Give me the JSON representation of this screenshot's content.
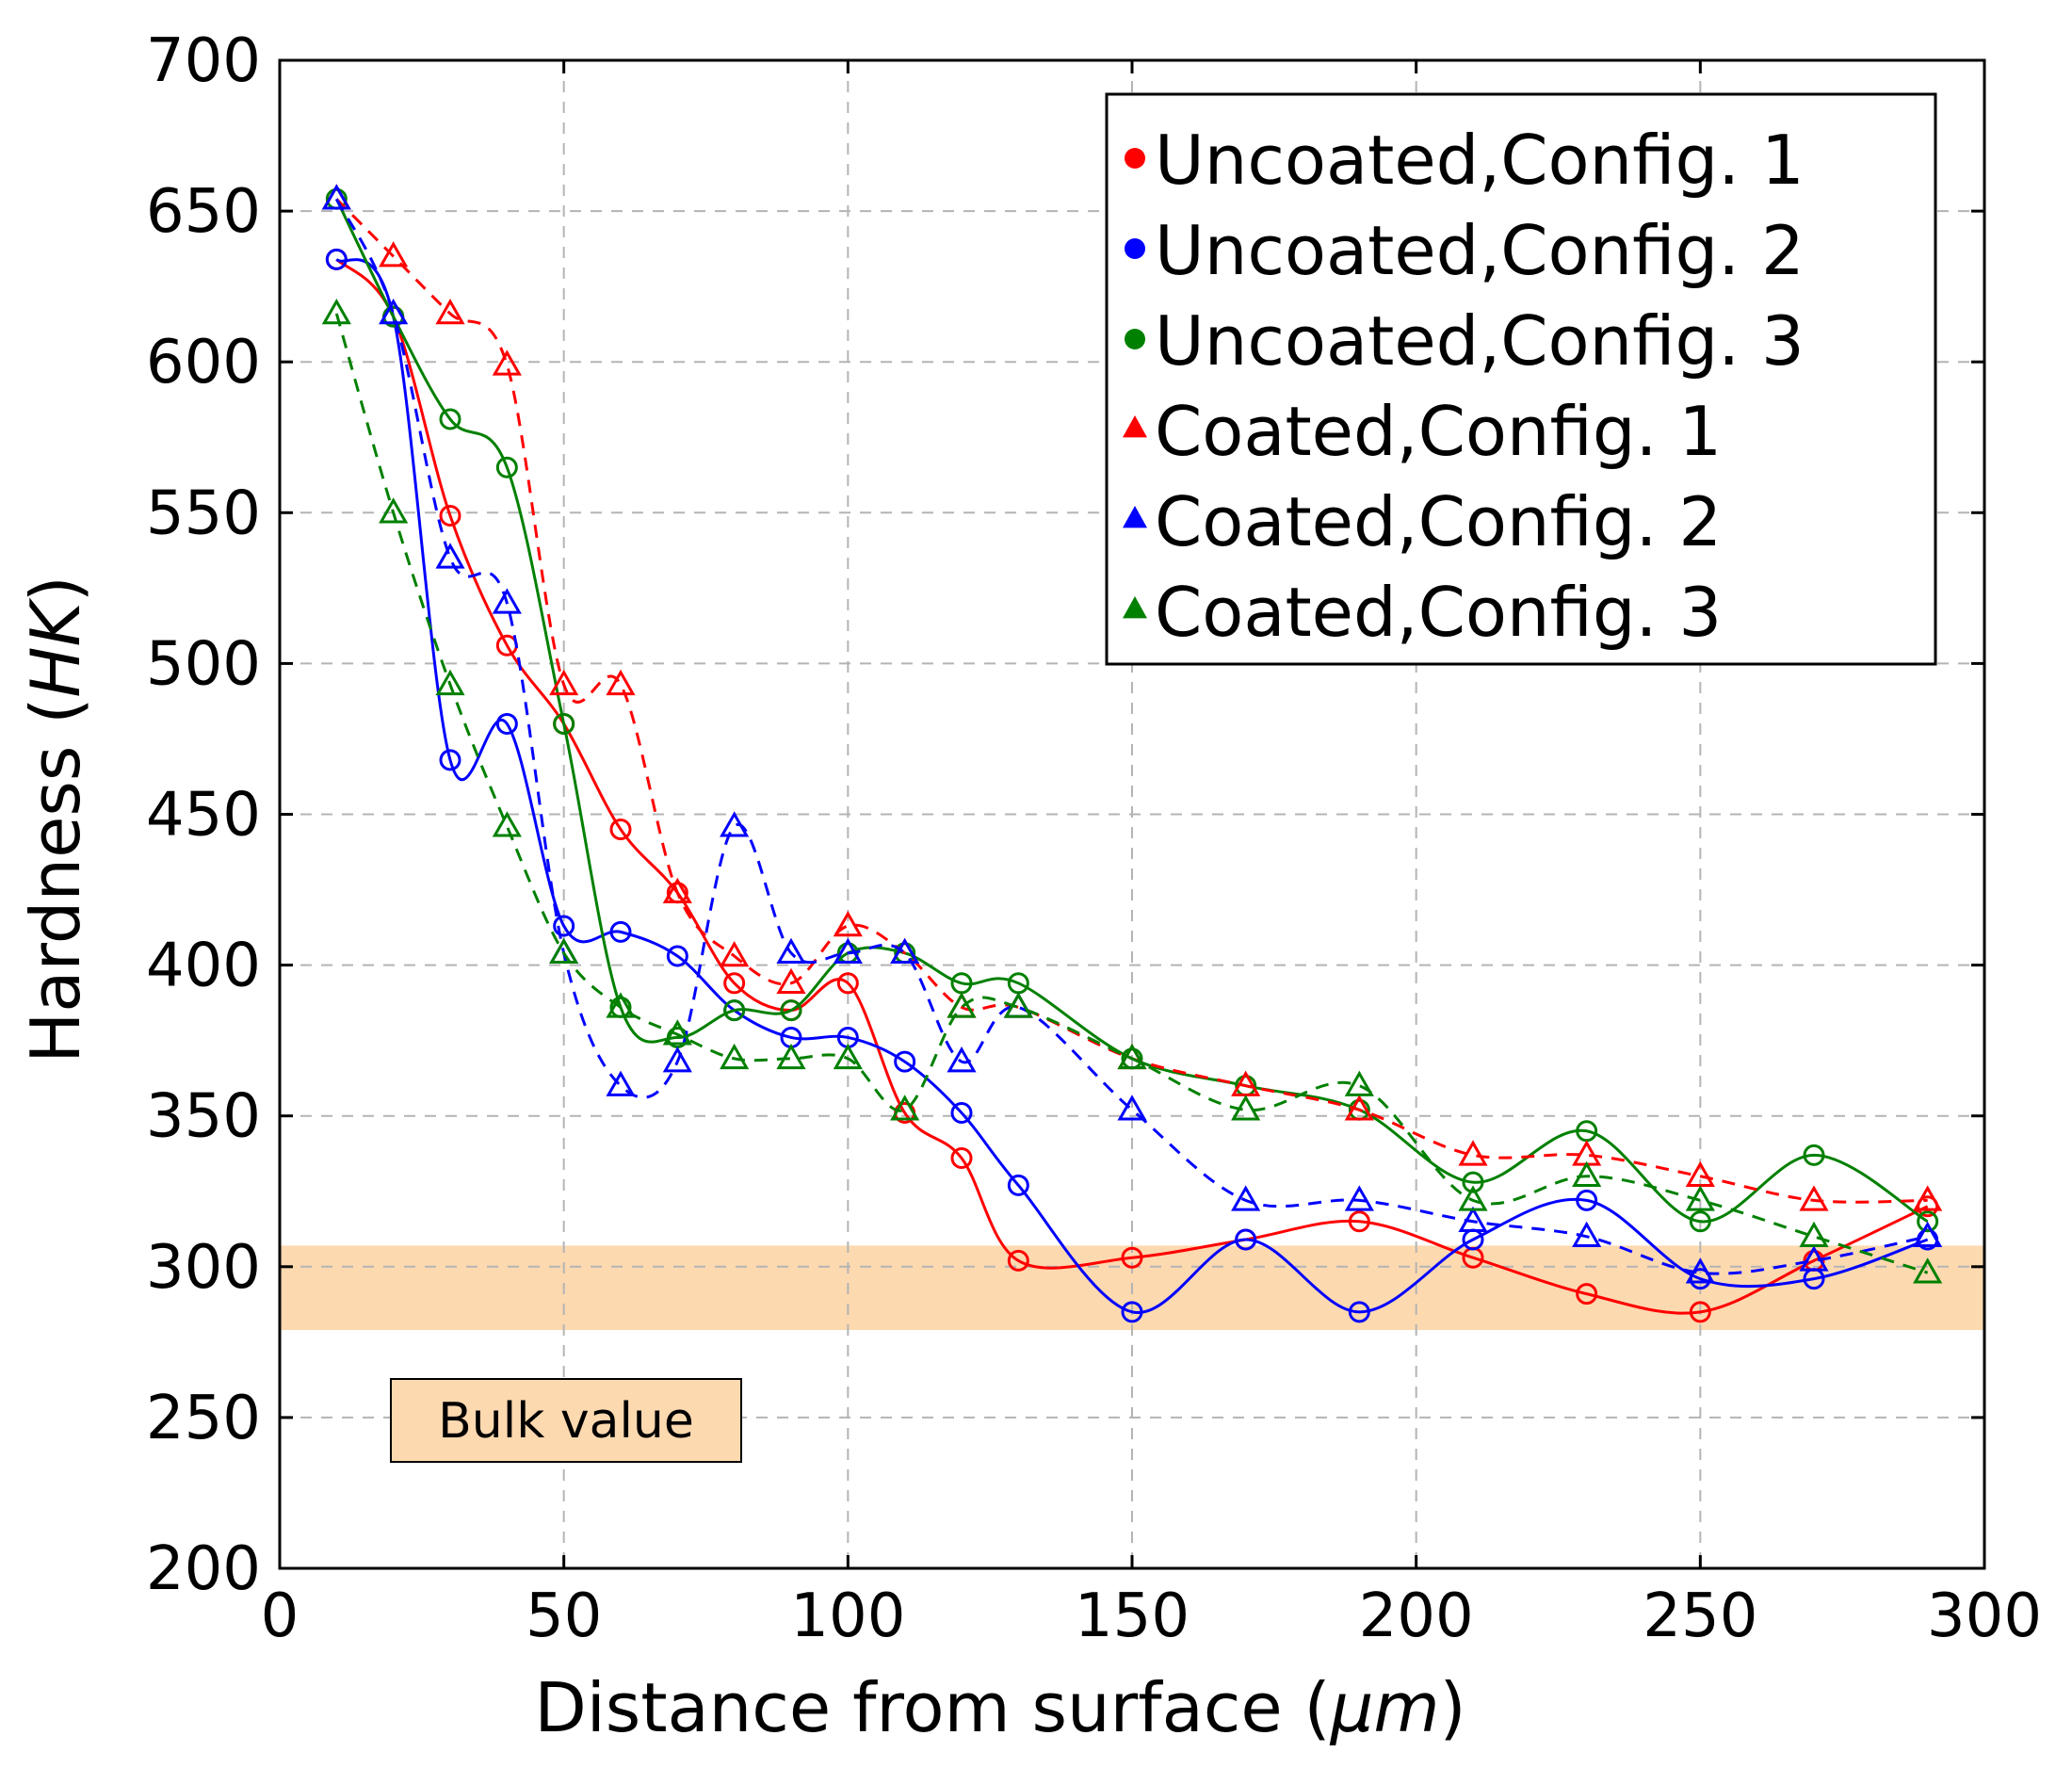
{
  "chart_data": {
    "type": "line",
    "xlabel_prefix": "Distance from surface (",
    "xlabel_unit": "μm",
    "xlabel_suffix": ")",
    "ylabel_prefix": "Hardness (",
    "ylabel_unit": "HK",
    "ylabel_suffix": ")",
    "xlim": [
      0,
      300
    ],
    "ylim": [
      200,
      700
    ],
    "xticks": [
      0,
      50,
      100,
      150,
      200,
      250,
      300
    ],
    "yticks": [
      200,
      250,
      300,
      350,
      400,
      450,
      500,
      550,
      600,
      650,
      700
    ],
    "grid": true,
    "legend_position": "top-right",
    "bulk_band": {
      "label": "Bulk value",
      "y_range": [
        279,
        307
      ],
      "color": "#fdd9b0"
    },
    "series": [
      {
        "name": "Uncoated,Config. 1",
        "color": "#ff0000",
        "marker": "circle",
        "line_style": "solid",
        "x": [
          10,
          20,
          30,
          40,
          50,
          60,
          70,
          80,
          90,
          100,
          110,
          120,
          130,
          150,
          170,
          190,
          210,
          230,
          250,
          270,
          290
        ],
        "y": [
          634,
          615,
          549,
          506,
          480,
          445,
          424,
          394,
          385,
          394,
          351,
          336,
          302,
          303,
          309,
          315,
          303,
          291,
          285,
          302,
          320
        ]
      },
      {
        "name": "Uncoated,Config. 2",
        "color": "#0000ff",
        "marker": "circle",
        "line_style": "solid",
        "x": [
          10,
          20,
          30,
          40,
          50,
          60,
          70,
          80,
          90,
          100,
          110,
          120,
          130,
          150,
          170,
          190,
          210,
          230,
          250,
          270,
          290
        ],
        "y": [
          634,
          615,
          468,
          480,
          413,
          411,
          403,
          385,
          376,
          376,
          368,
          351,
          327,
          285,
          309,
          285,
          309,
          322,
          296,
          296,
          309
        ]
      },
      {
        "name": "Uncoated,Config. 3",
        "color": "#008000",
        "marker": "circle",
        "line_style": "solid",
        "x": [
          10,
          20,
          30,
          40,
          50,
          60,
          70,
          80,
          90,
          100,
          110,
          120,
          130,
          150,
          170,
          190,
          210,
          230,
          250,
          270,
          290
        ],
        "y": [
          654,
          615,
          581,
          565,
          480,
          386,
          376,
          385,
          385,
          404,
          404,
          394,
          394,
          369,
          360,
          352,
          328,
          345,
          315,
          337,
          315
        ]
      },
      {
        "name": "Coated,Config. 1",
        "color": "#ff0000",
        "marker": "triangle",
        "line_style": "dashed",
        "x": [
          10,
          20,
          30,
          40,
          50,
          60,
          70,
          80,
          90,
          100,
          110,
          120,
          130,
          150,
          170,
          190,
          210,
          230,
          250,
          270,
          290
        ],
        "y": [
          654,
          635,
          616,
          599,
          493,
          493,
          424,
          403,
          394,
          413,
          404,
          386,
          386,
          369,
          360,
          352,
          337,
          337,
          330,
          322,
          322
        ]
      },
      {
        "name": "Coated,Config. 2",
        "color": "#0000ff",
        "marker": "triangle",
        "line_style": "dashed",
        "x": [
          10,
          20,
          30,
          40,
          50,
          60,
          70,
          80,
          90,
          100,
          110,
          120,
          130,
          150,
          170,
          190,
          210,
          230,
          250,
          270,
          290
        ],
        "y": [
          654,
          616,
          535,
          520,
          404,
          360,
          368,
          446,
          404,
          404,
          404,
          368,
          386,
          352,
          322,
          322,
          315,
          310,
          298,
          302,
          310
        ]
      },
      {
        "name": "Coated,Config. 3",
        "color": "#008000",
        "marker": "triangle",
        "line_style": "dashed",
        "x": [
          10,
          20,
          30,
          40,
          50,
          60,
          70,
          80,
          90,
          100,
          110,
          120,
          130,
          150,
          170,
          190,
          210,
          230,
          250,
          270,
          290
        ],
        "y": [
          616,
          550,
          493,
          446,
          404,
          386,
          377,
          369,
          369,
          369,
          352,
          386,
          386,
          369,
          352,
          360,
          322,
          330,
          322,
          310,
          298
        ]
      }
    ]
  }
}
